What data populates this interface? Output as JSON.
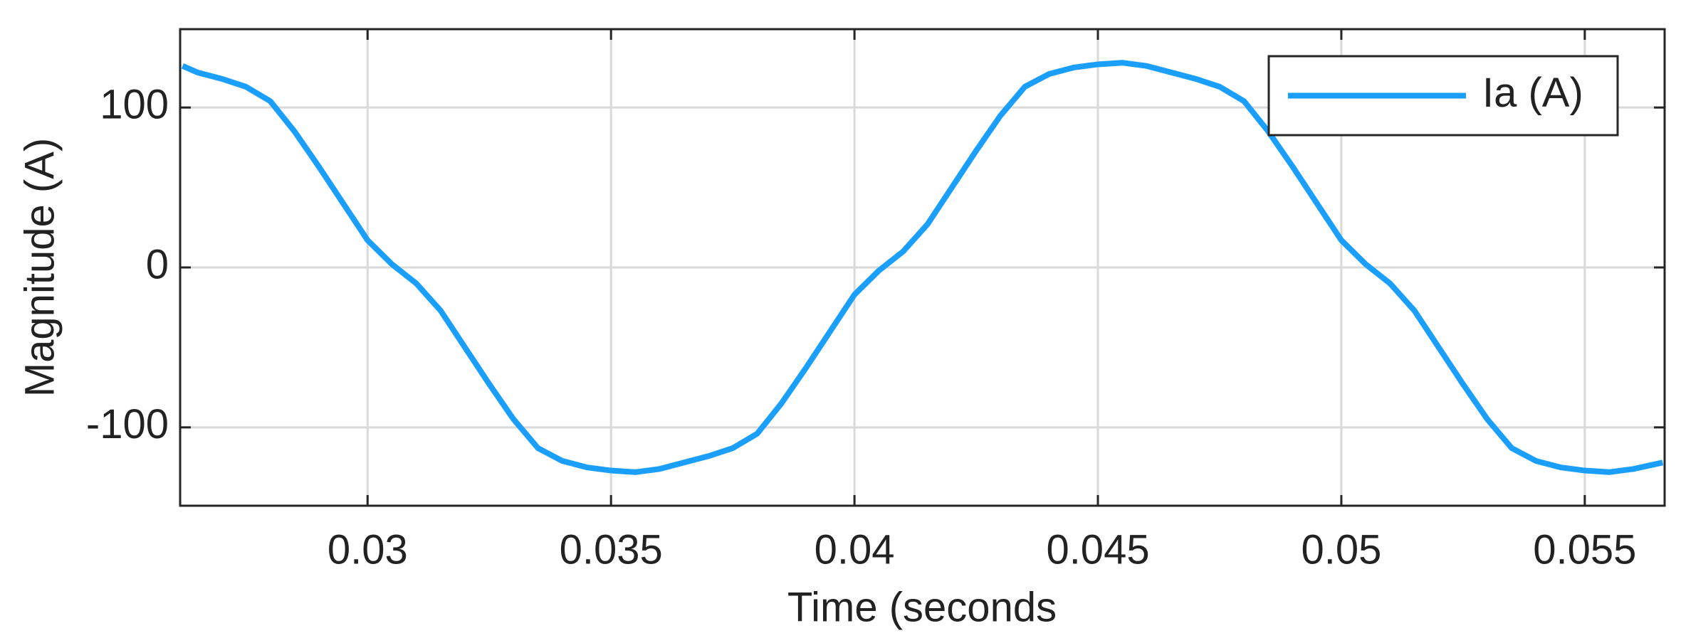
{
  "chart_data": {
    "type": "line",
    "xlabel": "Time (seconds",
    "ylabel": "Magnitude (A)",
    "xlim": [
      0.02615,
      0.05664
    ],
    "ylim": [
      -149,
      149
    ],
    "xticks": [
      0.03,
      0.035,
      0.04,
      0.045,
      0.05,
      0.055
    ],
    "yticks": [
      -100,
      0,
      100
    ],
    "grid": true,
    "legend": "northeast",
    "series": [
      {
        "name": "Ia (A)",
        "color": "#1a9fff",
        "x": [
          0.0262,
          0.0265,
          0.027,
          0.0275,
          0.028,
          0.0285,
          0.029,
          0.0295,
          0.03,
          0.0305,
          0.031,
          0.0315,
          0.032,
          0.0325,
          0.033,
          0.0335,
          0.034,
          0.0345,
          0.035,
          0.0355,
          0.036,
          0.0365,
          0.037,
          0.0375,
          0.038,
          0.0385,
          0.039,
          0.0395,
          0.04,
          0.0405,
          0.041,
          0.0415,
          0.042,
          0.0425,
          0.043,
          0.0435,
          0.044,
          0.0445,
          0.045,
          0.0455,
          0.046,
          0.0465,
          0.047,
          0.0475,
          0.048,
          0.0485,
          0.049,
          0.0495,
          0.05,
          0.0505,
          0.051,
          0.0515,
          0.052,
          0.0525,
          0.053,
          0.0535,
          0.054,
          0.0545,
          0.055,
          0.0555,
          0.056,
          0.0566
        ],
        "values": [
          126,
          122,
          118,
          113,
          104,
          85,
          63,
          40,
          17,
          2,
          -10,
          -27,
          -50,
          -73,
          -95,
          -113,
          -121,
          -125,
          -127,
          -128,
          -126,
          -122,
          -118,
          -113,
          -104,
          -85,
          -63,
          -40,
          -17,
          -2,
          10,
          27,
          50,
          73,
          95,
          113,
          121,
          125,
          127,
          128,
          126,
          122,
          118,
          113,
          104,
          85,
          63,
          40,
          17,
          2,
          -10,
          -27,
          -50,
          -73,
          -95,
          -113,
          -121,
          -125,
          -127,
          -128,
          -126,
          -122
        ]
      }
    ]
  }
}
